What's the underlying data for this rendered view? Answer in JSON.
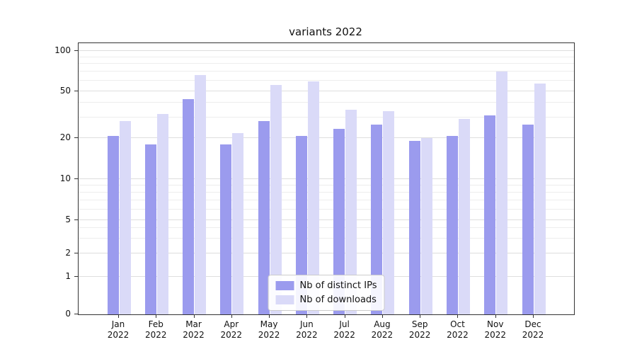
{
  "chart_data": {
    "type": "bar",
    "title": "variants 2022",
    "scale": "symlog",
    "categories": [
      "Jan 2022",
      "Feb 2022",
      "Mar 2022",
      "Apr 2022",
      "May 2022",
      "Jun 2022",
      "Jul 2022",
      "Aug 2022",
      "Sep 2022",
      "Oct 2022",
      "Nov 2022",
      "Dec 2022"
    ],
    "series": [
      {
        "name": "Nb of distinct IPs",
        "color": "#9b9bee",
        "values": [
          21,
          18,
          43,
          18,
          28,
          21,
          24,
          26,
          19,
          21,
          31,
          26
        ]
      },
      {
        "name": "Nb of downloads",
        "color": "#dadaf8",
        "values": [
          28,
          32,
          66,
          22,
          56,
          59,
          35,
          34,
          20,
          29,
          70,
          57
        ]
      }
    ],
    "yticks": [
      0,
      1,
      2,
      5,
      10,
      20,
      50,
      100
    ],
    "ylim": [
      0,
      120
    ],
    "xlabel": "",
    "ylabel": "",
    "grid": true,
    "legend_position": "lower center"
  }
}
